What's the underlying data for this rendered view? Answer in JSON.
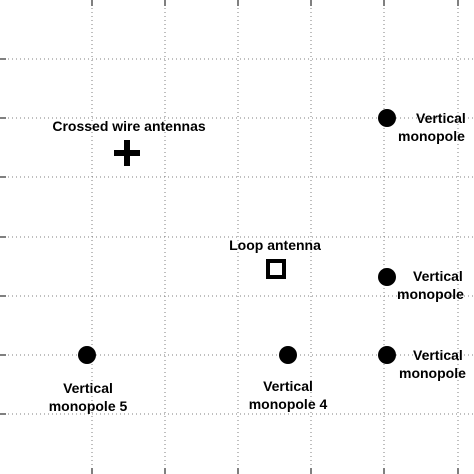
{
  "diagram": {
    "labels": {
      "crossed_wire": "Crossed wire antennas",
      "loop": "Loop antenna",
      "monopole_5": {
        "line1": "Vertical",
        "line2": "monopole 5"
      },
      "monopole_4": {
        "line1": "Vertical",
        "line2": "monopole 4"
      },
      "monopole_top_right": {
        "line1": "Vertical",
        "line2": "monopole"
      },
      "monopole_mid_right": {
        "line1": "Vertical",
        "line2": "monopole"
      },
      "monopole_bottom_right": {
        "line1": "Vertical",
        "line2": "monopole"
      }
    },
    "colors": {
      "marker": "#000000",
      "grid": "#7f7f7f",
      "background": "#ffffff"
    }
  }
}
